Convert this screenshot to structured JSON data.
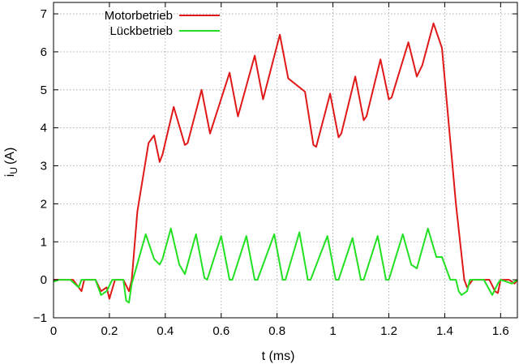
{
  "chart_data": {
    "type": "line",
    "title": "",
    "xlabel": "t (ms)",
    "ylabel_main": "i",
    "ylabel_sub": "U",
    "ylabel_unit": "(A)",
    "xlim": [
      0,
      1.66
    ],
    "ylim": [
      -1,
      7.3
    ],
    "xticks": [
      0,
      0.2,
      0.4,
      0.6,
      0.8,
      1,
      1.2,
      1.4,
      1.6
    ],
    "xtick_labels": [
      "0",
      "0.2",
      "0.4",
      "0.6",
      "0.8",
      "1",
      "1.2",
      "1.4",
      "1.6"
    ],
    "yticks": [
      -1,
      0,
      1,
      2,
      3,
      4,
      5,
      6,
      7
    ],
    "ytick_labels": [
      "−1",
      "0",
      "1",
      "2",
      "3",
      "4",
      "5",
      "6",
      "7"
    ],
    "grid": true,
    "legend_position": "top-left",
    "series": [
      {
        "name": "Motorbetrieb",
        "color": "#e01818",
        "points": [
          [
            0,
            0
          ],
          [
            0.02,
            0
          ],
          [
            0.07,
            0
          ],
          [
            0.08,
            -0.1
          ],
          [
            0.1,
            -0.3
          ],
          [
            0.11,
            0
          ],
          [
            0.15,
            0
          ],
          [
            0.17,
            -0.3
          ],
          [
            0.19,
            -0.2
          ],
          [
            0.2,
            -0.5
          ],
          [
            0.22,
            0
          ],
          [
            0.25,
            0
          ],
          [
            0.27,
            -0.3
          ],
          [
            0.28,
            0
          ],
          [
            0.3,
            1.8
          ],
          [
            0.34,
            3.6
          ],
          [
            0.36,
            3.8
          ],
          [
            0.38,
            3.1
          ],
          [
            0.39,
            3.3
          ],
          [
            0.43,
            4.55
          ],
          [
            0.47,
            3.55
          ],
          [
            0.48,
            3.6
          ],
          [
            0.53,
            5.0
          ],
          [
            0.56,
            3.85
          ],
          [
            0.63,
            5.45
          ],
          [
            0.66,
            4.3
          ],
          [
            0.72,
            5.9
          ],
          [
            0.75,
            4.75
          ],
          [
            0.81,
            6.45
          ],
          [
            0.84,
            5.3
          ],
          [
            0.9,
            4.95
          ],
          [
            0.93,
            3.55
          ],
          [
            0.94,
            3.5
          ],
          [
            0.99,
            4.9
          ],
          [
            1.02,
            3.75
          ],
          [
            1.03,
            3.85
          ],
          [
            1.08,
            5.35
          ],
          [
            1.11,
            4.2
          ],
          [
            1.12,
            4.3
          ],
          [
            1.17,
            5.8
          ],
          [
            1.2,
            4.75
          ],
          [
            1.21,
            4.8
          ],
          [
            1.27,
            6.25
          ],
          [
            1.3,
            5.35
          ],
          [
            1.32,
            5.65
          ],
          [
            1.36,
            6.75
          ],
          [
            1.39,
            6.1
          ],
          [
            1.44,
            2.0
          ],
          [
            1.47,
            0
          ],
          [
            1.48,
            -0.2
          ],
          [
            1.5,
            0
          ],
          [
            1.56,
            0
          ],
          [
            1.58,
            -0.3
          ],
          [
            1.59,
            -0.35
          ],
          [
            1.6,
            0
          ],
          [
            1.63,
            0
          ],
          [
            1.65,
            -0.1
          ],
          [
            1.66,
            0
          ]
        ]
      },
      {
        "name": "Lückbetrieb",
        "color": "#22e022",
        "points": [
          [
            0,
            -0.05
          ],
          [
            0.02,
            0
          ],
          [
            0.06,
            0
          ],
          [
            0.09,
            -0.2
          ],
          [
            0.1,
            0
          ],
          [
            0.15,
            0
          ],
          [
            0.17,
            -0.4
          ],
          [
            0.19,
            -0.3
          ],
          [
            0.21,
            0
          ],
          [
            0.25,
            0
          ],
          [
            0.26,
            -0.55
          ],
          [
            0.27,
            -0.6
          ],
          [
            0.28,
            -0.1
          ],
          [
            0.33,
            1.2
          ],
          [
            0.36,
            0.55
          ],
          [
            0.38,
            0.4
          ],
          [
            0.39,
            0.55
          ],
          [
            0.42,
            1.35
          ],
          [
            0.45,
            0.4
          ],
          [
            0.47,
            0.15
          ],
          [
            0.51,
            1.2
          ],
          [
            0.54,
            0.05
          ],
          [
            0.55,
            0
          ],
          [
            0.6,
            1.15
          ],
          [
            0.63,
            0
          ],
          [
            0.64,
            0
          ],
          [
            0.69,
            1.15
          ],
          [
            0.72,
            0
          ],
          [
            0.73,
            0
          ],
          [
            0.79,
            1.2
          ],
          [
            0.82,
            0
          ],
          [
            0.83,
            0
          ],
          [
            0.88,
            1.25
          ],
          [
            0.91,
            0
          ],
          [
            0.92,
            0
          ],
          [
            0.98,
            1.15
          ],
          [
            1.01,
            0
          ],
          [
            1.02,
            0
          ],
          [
            1.07,
            1.1
          ],
          [
            1.1,
            0
          ],
          [
            1.11,
            0
          ],
          [
            1.16,
            1.15
          ],
          [
            1.19,
            0
          ],
          [
            1.2,
            0
          ],
          [
            1.25,
            1.2
          ],
          [
            1.28,
            0.4
          ],
          [
            1.3,
            0.3
          ],
          [
            1.34,
            1.35
          ],
          [
            1.37,
            0.6
          ],
          [
            1.39,
            0.6
          ],
          [
            1.42,
            0
          ],
          [
            1.44,
            0
          ],
          [
            1.45,
            -0.3
          ],
          [
            1.46,
            -0.4
          ],
          [
            1.48,
            -0.3
          ],
          [
            1.49,
            0
          ],
          [
            1.54,
            0
          ],
          [
            1.57,
            -0.4
          ],
          [
            1.59,
            -0.1
          ],
          [
            1.6,
            0
          ],
          [
            1.64,
            -0.1
          ],
          [
            1.66,
            0
          ]
        ]
      }
    ]
  }
}
